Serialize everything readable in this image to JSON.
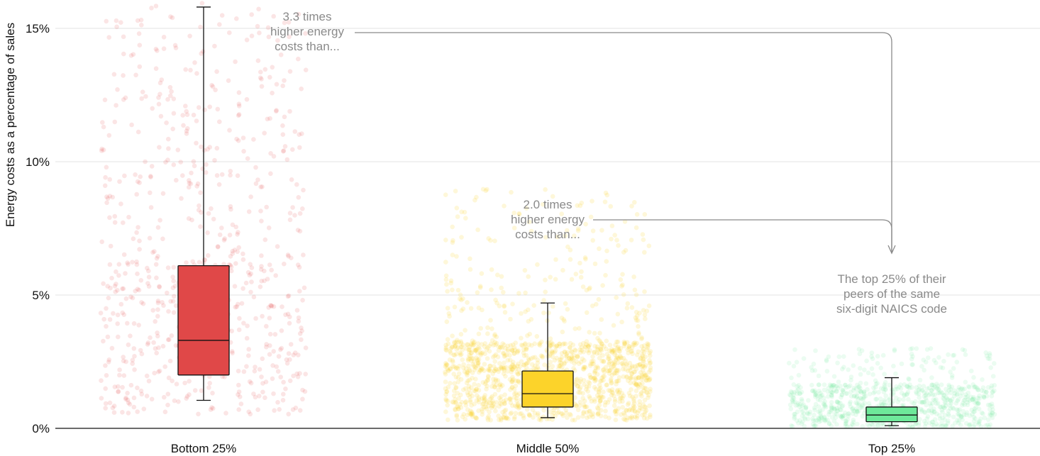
{
  "chart_data": {
    "type": "box",
    "ylabel": "Energy costs as a percentage of sales",
    "ylim": [
      0,
      16
    ],
    "yticks": [
      0,
      5,
      10,
      15
    ],
    "ytick_labels": [
      "0%",
      "5%",
      "10%",
      "15%"
    ],
    "grid": true,
    "categories": [
      "Bottom 25%",
      "Middle 50%",
      "Top 25%"
    ],
    "colors": {
      "Bottom 25%": "#e04848",
      "Middle 50%": "#fcd32a",
      "Top 25%": "#6ee89a"
    },
    "boxes": [
      {
        "category": "Bottom 25%",
        "whisker_low": 1.05,
        "q1": 2.0,
        "median": 3.3,
        "q3": 6.1,
        "whisker_high": 15.8
      },
      {
        "category": "Middle 50%",
        "whisker_low": 0.4,
        "q1": 0.8,
        "median": 1.3,
        "q3": 2.15,
        "whisker_high": 4.7
      },
      {
        "category": "Top 25%",
        "whisker_low": 0.1,
        "q1": 0.25,
        "median": 0.5,
        "q3": 0.8,
        "whisker_high": 1.9
      }
    ],
    "jitter_ranges": [
      {
        "category": "Bottom 25%",
        "max": 16.0
      },
      {
        "category": "Middle 50%",
        "max": 9.0
      },
      {
        "category": "Top 25%",
        "max": 3.0
      }
    ],
    "annotations": [
      {
        "lines": [
          "3.3 times",
          "higher energy",
          "costs than..."
        ],
        "from": "Bottom 25%"
      },
      {
        "lines": [
          "2.0 times",
          "higher energy",
          "costs than..."
        ],
        "from": "Middle 50%"
      },
      {
        "lines": [
          "The top 25% of their",
          "peers of the same",
          "six-digit NAICS code"
        ],
        "to": "Top 25%"
      }
    ]
  }
}
